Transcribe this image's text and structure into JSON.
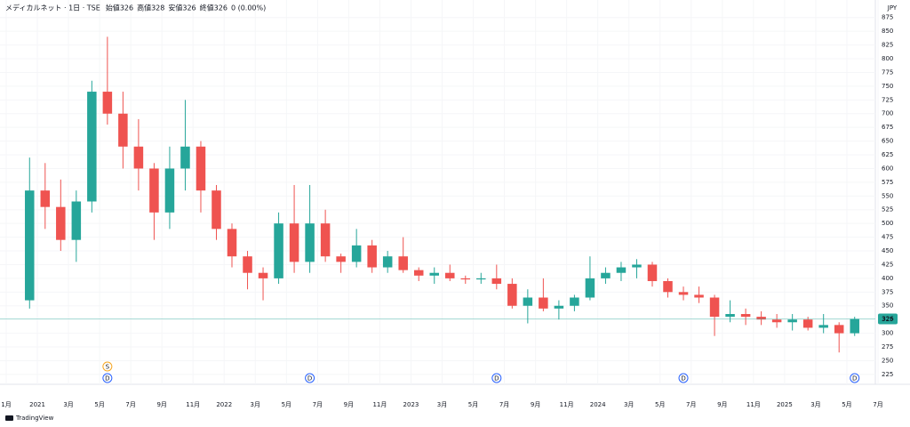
{
  "chart_data": {
    "type": "candlestick",
    "symbol": "メディカルネット · 1日 · TSE",
    "ohlc_labels": [
      "始値",
      "高値",
      "安値",
      "終値"
    ],
    "ohlc_values": [
      326,
      328,
      326,
      326
    ],
    "change": "0 (0.00%)",
    "currency": "JPY",
    "brand": "TradingView",
    "last_price": 326,
    "up_color": "#26a69a",
    "down_color": "#ef5350",
    "grid": true,
    "ylim": [
      207,
      907
    ],
    "yticks": [
      225,
      250,
      275,
      300,
      325,
      350,
      375,
      400,
      425,
      450,
      475,
      500,
      525,
      550,
      575,
      600,
      625,
      650,
      675,
      700,
      725,
      750,
      775,
      800,
      825,
      850,
      875
    ],
    "xlim": [
      "2020-11",
      "2025-07"
    ],
    "xticks": [
      {
        "value": "2020-11",
        "label": "1月"
      },
      {
        "value": "2021-01",
        "label": "2021"
      },
      {
        "value": "2021-03",
        "label": "3月"
      },
      {
        "value": "2021-05",
        "label": "5月"
      },
      {
        "value": "2021-07",
        "label": "7月"
      },
      {
        "value": "2021-09",
        "label": "9月"
      },
      {
        "value": "2021-11",
        "label": "11月"
      },
      {
        "value": "2022-01",
        "label": "2022"
      },
      {
        "value": "2022-03",
        "label": "3月"
      },
      {
        "value": "2022-05",
        "label": "5月"
      },
      {
        "value": "2022-07",
        "label": "7月"
      },
      {
        "value": "2022-09",
        "label": "9月"
      },
      {
        "value": "2022-11",
        "label": "11月"
      },
      {
        "value": "2023-01",
        "label": "2023"
      },
      {
        "value": "2023-03",
        "label": "3月"
      },
      {
        "value": "2023-05",
        "label": "5月"
      },
      {
        "value": "2023-07",
        "label": "7月"
      },
      {
        "value": "2023-09",
        "label": "9月"
      },
      {
        "value": "2023-11",
        "label": "11月"
      },
      {
        "value": "2024-01",
        "label": "2024"
      },
      {
        "value": "2024-03",
        "label": "3月"
      },
      {
        "value": "2024-05",
        "label": "5月"
      },
      {
        "value": "2024-07",
        "label": "7月"
      },
      {
        "value": "2024-09",
        "label": "9月"
      },
      {
        "value": "2024-11",
        "label": "11月"
      },
      {
        "value": "2025-01",
        "label": "2025"
      },
      {
        "value": "2025-03",
        "label": "3月"
      },
      {
        "value": "2025-05",
        "label": "5月"
      },
      {
        "value": "2025-07",
        "label": "7月"
      }
    ],
    "x": [
      "2020-12",
      "2021-01",
      "2021-02",
      "2021-03",
      "2021-04",
      "2021-05",
      "2021-06",
      "2021-07",
      "2021-08",
      "2021-09",
      "2021-10",
      "2021-11",
      "2021-12",
      "2022-01",
      "2022-02",
      "2022-03",
      "2022-04",
      "2022-05",
      "2022-06",
      "2022-07",
      "2022-08",
      "2022-09",
      "2022-10",
      "2022-11",
      "2022-12",
      "2023-01",
      "2023-02",
      "2023-03",
      "2023-04",
      "2023-05",
      "2023-06",
      "2023-07",
      "2023-08",
      "2023-09",
      "2023-10",
      "2023-11",
      "2023-12",
      "2024-01",
      "2024-02",
      "2024-03",
      "2024-04",
      "2024-05",
      "2024-06",
      "2024-07",
      "2024-08",
      "2024-09",
      "2024-10",
      "2024-11",
      "2024-12",
      "2025-01",
      "2025-02",
      "2025-03",
      "2025-04",
      "2025-05"
    ],
    "open": [
      360,
      560,
      530,
      470,
      540,
      740,
      700,
      640,
      600,
      520,
      600,
      640,
      560,
      490,
      440,
      410,
      400,
      500,
      430,
      500,
      440,
      430,
      460,
      420,
      440,
      415,
      405,
      410,
      400,
      398,
      400,
      390,
      350,
      365,
      345,
      350,
      365,
      400,
      410,
      420,
      425,
      395,
      375,
      370,
      365,
      330,
      335,
      330,
      325,
      320,
      325,
      310,
      315,
      300
    ],
    "high": [
      620,
      610,
      580,
      560,
      760,
      840,
      740,
      690,
      610,
      640,
      725,
      650,
      570,
      500,
      450,
      420,
      520,
      570,
      570,
      525,
      445,
      490,
      470,
      450,
      475,
      420,
      420,
      425,
      405,
      410,
      425,
      400,
      380,
      400,
      360,
      370,
      440,
      420,
      430,
      435,
      430,
      400,
      385,
      385,
      370,
      360,
      345,
      340,
      335,
      335,
      330,
      335,
      320,
      330
    ],
    "low": [
      345,
      490,
      450,
      430,
      520,
      680,
      600,
      560,
      470,
      490,
      560,
      520,
      470,
      420,
      380,
      360,
      390,
      410,
      410,
      430,
      410,
      420,
      410,
      410,
      410,
      395,
      390,
      395,
      390,
      390,
      380,
      345,
      318,
      340,
      325,
      340,
      360,
      390,
      395,
      400,
      385,
      365,
      360,
      355,
      295,
      320,
      315,
      315,
      310,
      305,
      305,
      300,
      265,
      295
    ],
    "close": [
      560,
      530,
      470,
      540,
      740,
      700,
      640,
      600,
      520,
      600,
      640,
      560,
      490,
      440,
      410,
      400,
      500,
      430,
      500,
      440,
      430,
      460,
      420,
      440,
      415,
      405,
      410,
      400,
      398,
      400,
      390,
      350,
      365,
      345,
      350,
      365,
      400,
      410,
      420,
      425,
      395,
      375,
      370,
      365,
      330,
      335,
      330,
      325,
      320,
      325,
      310,
      315,
      300,
      326
    ],
    "events": [
      {
        "x": "2021-05",
        "label": "D",
        "color": "#2962ff"
      },
      {
        "x": "2021-05",
        "label": "S",
        "color": "#f5a623"
      },
      {
        "x": "2022-06",
        "label": "D",
        "color": "#2962ff"
      },
      {
        "x": "2023-06",
        "label": "D",
        "color": "#2962ff"
      },
      {
        "x": "2024-06",
        "label": "D",
        "color": "#2962ff"
      },
      {
        "x": "2025-05",
        "label": "D",
        "color": "#2962ff"
      }
    ]
  }
}
